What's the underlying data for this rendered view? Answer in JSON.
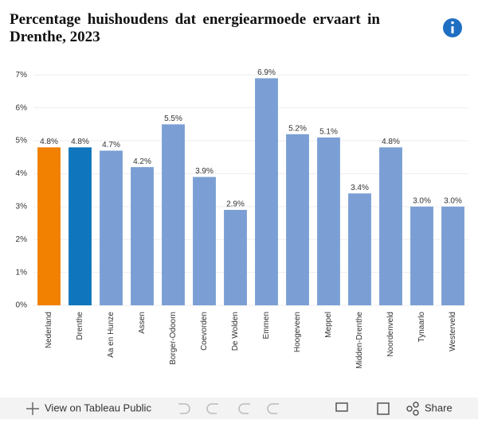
{
  "chart_data": {
    "type": "bar",
    "title": "Percentage huishoudens dat energiearmoede ervaart in Drenthe, 2023",
    "categories": [
      "Nederland",
      "Drenthe",
      "Aa en Hunze",
      "Assen",
      "Borger-Odoorn",
      "Coevorden",
      "De Wolden",
      "Emmen",
      "Hoogeveen",
      "Meppel",
      "Midden-Drenthe",
      "Noordenveld",
      "Tynaarlo",
      "Westerveld"
    ],
    "values": [
      4.8,
      4.8,
      4.7,
      4.2,
      5.5,
      3.9,
      2.9,
      6.9,
      5.2,
      5.1,
      3.4,
      4.8,
      3.0,
      3.0
    ],
    "value_labels": [
      "4.8%",
      "4.8%",
      "4.7%",
      "4.2%",
      "5.5%",
      "3.9%",
      "2.9%",
      "6.9%",
      "5.2%",
      "5.1%",
      "3.4%",
      "4.8%",
      "3.0%",
      "3.0%"
    ],
    "colors": [
      "#f28001",
      "#0f76bd",
      "#7b9fd4",
      "#7b9fd4",
      "#7b9fd4",
      "#7b9fd4",
      "#7b9fd4",
      "#7b9fd4",
      "#7b9fd4",
      "#7b9fd4",
      "#7b9fd4",
      "#7b9fd4",
      "#7b9fd4",
      "#7b9fd4"
    ],
    "ylim": [
      0,
      7.2
    ],
    "yticks": [
      {
        "value": 0,
        "label": "0%"
      },
      {
        "value": 1,
        "label": "1%"
      },
      {
        "value": 2,
        "label": "2%"
      },
      {
        "value": 3,
        "label": "3%"
      },
      {
        "value": 4,
        "label": "4%"
      },
      {
        "value": 5,
        "label": "5%"
      },
      {
        "value": 6,
        "label": "6%"
      },
      {
        "value": 7,
        "label": "7%"
      }
    ],
    "grid": true
  },
  "toolbar": {
    "view_label": "View on Tableau Public",
    "share_label": "Share"
  }
}
